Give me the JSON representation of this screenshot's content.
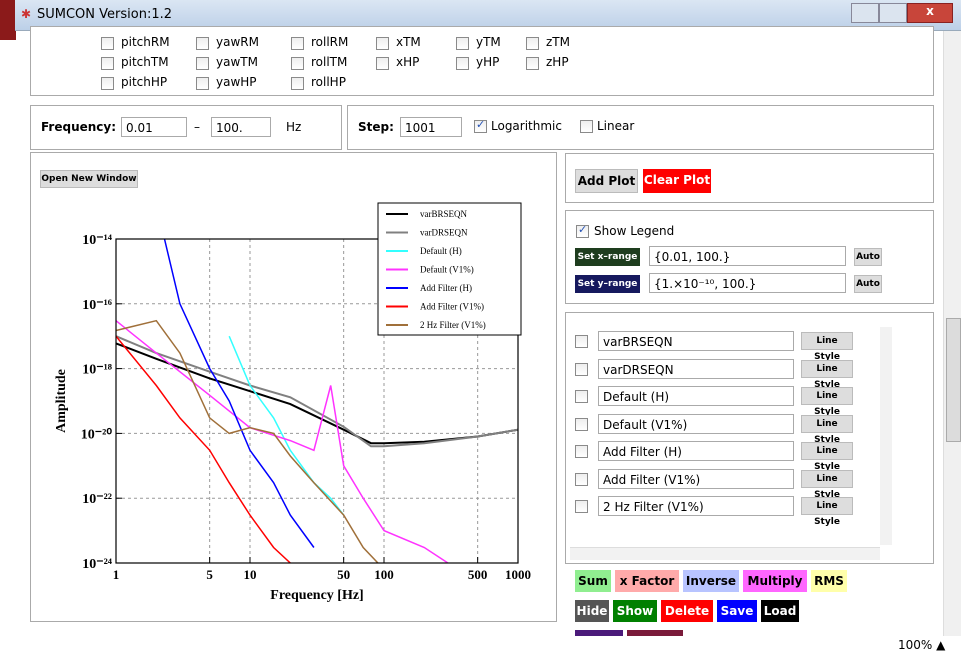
{
  "window": {
    "title": "SUMCON Version:1.2"
  },
  "channels": [
    [
      {
        "label": "pitchRM",
        "checked": false
      },
      {
        "label": "yawRM",
        "checked": false
      },
      {
        "label": "rollRM",
        "checked": false
      },
      {
        "label": "xTM",
        "checked": false
      },
      {
        "label": "yTM",
        "checked": false
      },
      {
        "label": "zTM",
        "checked": false
      }
    ],
    [
      {
        "label": "pitchTM",
        "checked": false
      },
      {
        "label": "yawTM",
        "checked": false
      },
      {
        "label": "rollTM",
        "checked": false
      },
      {
        "label": "xHP",
        "checked": false
      },
      {
        "label": "yHP",
        "checked": false
      },
      {
        "label": "zHP",
        "checked": false
      }
    ],
    [
      {
        "label": "pitchHP",
        "checked": false
      },
      {
        "label": "yawHP",
        "checked": false
      },
      {
        "label": "rollHP",
        "checked": false
      }
    ]
  ],
  "frequency": {
    "label": "Frequency:",
    "min": "0.01",
    "dash": "–",
    "max": "100.",
    "unit": "Hz"
  },
  "step": {
    "label": "Step:",
    "value": "1001",
    "options": [
      {
        "label": "Logarithmic",
        "checked": true
      },
      {
        "label": "Linear",
        "checked": false
      }
    ]
  },
  "plot_panel": {
    "button": "Open New Window"
  },
  "chart_data": {
    "type": "line",
    "xlabel": "Frequency [Hz]",
    "ylabel": "Amplitude",
    "xscale": "log",
    "yscale": "log",
    "grid": true,
    "xlim": [
      1,
      1000
    ],
    "ylim": [
      1e-24,
      1e-14
    ],
    "xticks": [
      1,
      5,
      10,
      50,
      100,
      500,
      1000
    ],
    "yticks": [
      {
        "value": 1e-14,
        "label": "10⁻¹⁴"
      },
      {
        "value": 1e-16,
        "label": "10⁻¹⁶"
      },
      {
        "value": 1e-18,
        "label": "10⁻¹⁸"
      },
      {
        "value": 1e-20,
        "label": "10⁻²⁰"
      },
      {
        "value": 1e-22,
        "label": "10⁻²²"
      },
      {
        "value": 1e-24,
        "label": "10⁻²⁴"
      }
    ],
    "series": [
      {
        "name": "varBRSEQN",
        "color": "#000000",
        "x": [
          1,
          2,
          5,
          10,
          20,
          50,
          80,
          100,
          200,
          500,
          1000
        ],
        "values": [
          6e-18,
          2e-18,
          5e-19,
          2e-19,
          8e-20,
          1.3e-20,
          5e-21,
          5e-21,
          5.5e-21,
          8e-21,
          1.3e-20
        ]
      },
      {
        "name": "varDRSEQN",
        "color": "#808080",
        "x": [
          1,
          2,
          5,
          10,
          20,
          50,
          80,
          100,
          200,
          500,
          1000
        ],
        "values": [
          1e-17,
          3e-18,
          8e-19,
          3e-19,
          1.3e-19,
          1.6e-20,
          4e-21,
          4e-21,
          5e-21,
          8e-21,
          1.3e-20
        ]
      },
      {
        "name": "Default (H)",
        "color": "#33ffff",
        "x": [
          7,
          10,
          15,
          20,
          30,
          40,
          50
        ],
        "values": [
          1e-17,
          3e-19,
          3e-20,
          3e-21,
          3e-22,
          1e-22,
          3e-23
        ]
      },
      {
        "name": "Default (V1%)",
        "color": "#ff33ff",
        "x": [
          1,
          2,
          5,
          10,
          20,
          30,
          40,
          50,
          70,
          100,
          200,
          300
        ],
        "values": [
          3e-17,
          3e-18,
          1.5e-19,
          1.5e-20,
          6e-21,
          3e-21,
          3e-19,
          1e-21,
          1e-22,
          1e-23,
          3e-24,
          1e-24
        ]
      },
      {
        "name": "Add Filter (H)",
        "color": "#0000ff",
        "x": [
          2.3,
          3,
          5,
          7,
          10,
          15,
          20,
          30
        ],
        "values": [
          1e-14,
          1e-16,
          1e-18,
          1e-19,
          3e-21,
          3e-22,
          3e-23,
          3e-24
        ]
      },
      {
        "name": "Add Filter (V1%)",
        "color": "#ff0000",
        "x": [
          1,
          2,
          3,
          5,
          7,
          10,
          15,
          20
        ],
        "values": [
          1e-17,
          3e-19,
          3e-20,
          3e-21,
          3e-22,
          3e-23,
          3e-24,
          1e-24
        ]
      },
      {
        "name": "2 Hz Filter (V1%)",
        "color": "#a0703a",
        "x": [
          1,
          2,
          3,
          5,
          7,
          10,
          15,
          20,
          30,
          50,
          70,
          90
        ],
        "values": [
          1.5e-17,
          3e-17,
          3e-18,
          3e-20,
          1e-20,
          1.5e-20,
          1e-20,
          2e-21,
          3e-22,
          3e-23,
          3e-24,
          1e-24
        ]
      }
    ]
  },
  "plot_controls": {
    "add": "Add Plot",
    "clear": "Clear Plot",
    "show_legend": {
      "label": "Show Legend",
      "checked": true
    },
    "x_range": {
      "button": "Set x–range",
      "value": "{0.01, 100.}",
      "auto": "Auto"
    },
    "y_range": {
      "button": "Set y–range",
      "value": "{1.×10⁻¹⁰, 100.}",
      "auto": "Auto"
    }
  },
  "series_list": {
    "button": "Line Style"
  },
  "operations": [
    [
      "Sum",
      "x Factor",
      "Inverse",
      "Multiply",
      "RMS"
    ],
    [
      "Hide",
      "Show",
      "Delete",
      "Save",
      "Load"
    ]
  ],
  "status": {
    "zoom": "100%"
  }
}
